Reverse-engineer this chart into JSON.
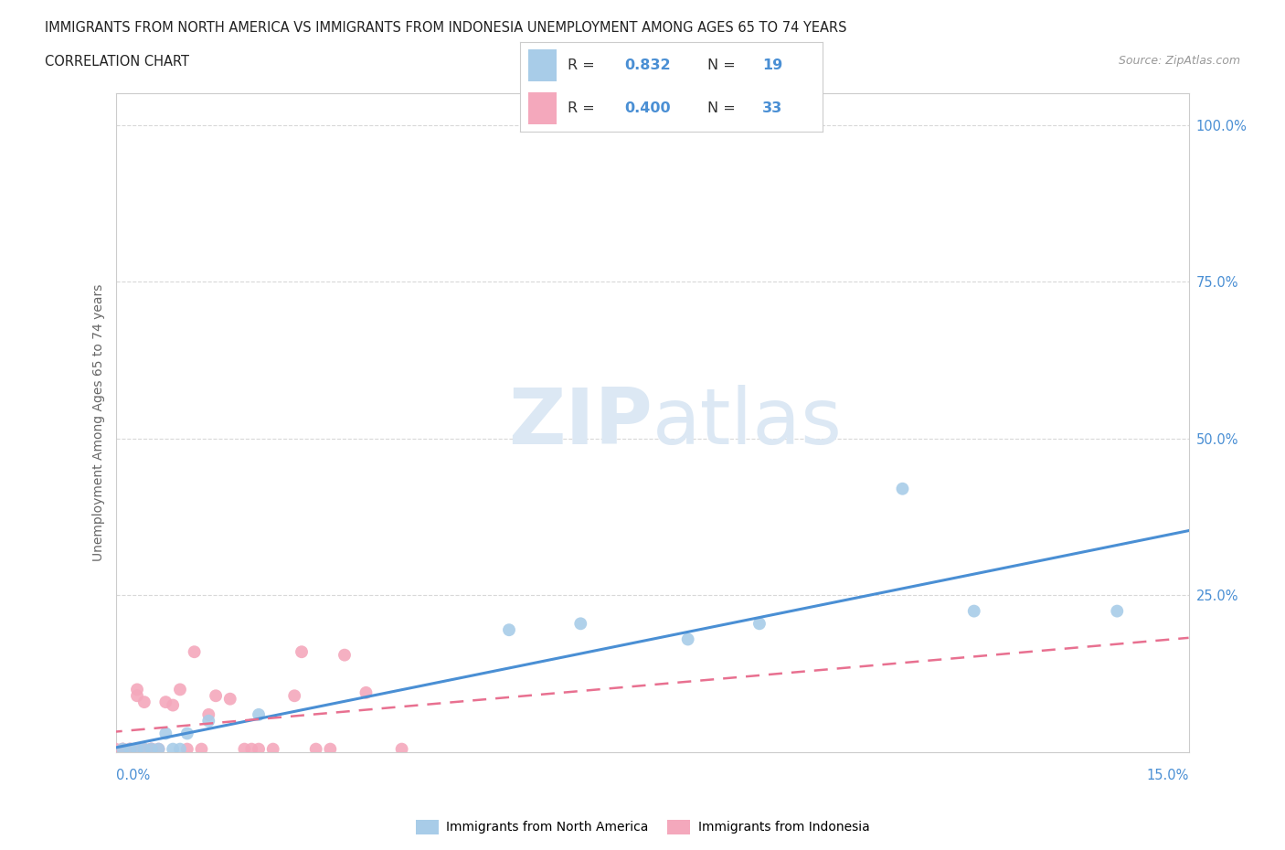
{
  "title_line1": "IMMIGRANTS FROM NORTH AMERICA VS IMMIGRANTS FROM INDONESIA UNEMPLOYMENT AMONG AGES 65 TO 74 YEARS",
  "title_line2": "CORRELATION CHART",
  "source_text": "Source: ZipAtlas.com",
  "ylabel_text": "Unemployment Among Ages 65 to 74 years",
  "blue_color": "#a8cce8",
  "pink_color": "#f4a8bc",
  "blue_line_color": "#4a8fd4",
  "pink_line_color": "#e87090",
  "tick_color": "#4a8fd4",
  "blue_R": "0.832",
  "blue_N": "19",
  "pink_R": "0.400",
  "pink_N": "33",
  "watermark_color": "#dce8f4",
  "blue_points_x": [
    0.001,
    0.002,
    0.003,
    0.004,
    0.005,
    0.006,
    0.007,
    0.008,
    0.009,
    0.01,
    0.013,
    0.02,
    0.055,
    0.065,
    0.08,
    0.09,
    0.11,
    0.12,
    0.14
  ],
  "blue_points_y": [
    0.005,
    0.005,
    0.005,
    0.005,
    0.005,
    0.005,
    0.03,
    0.005,
    0.005,
    0.03,
    0.05,
    0.06,
    0.195,
    0.205,
    0.18,
    0.205,
    0.42,
    0.225,
    0.225
  ],
  "pink_points_x": [
    0.0,
    0.001,
    0.001,
    0.002,
    0.002,
    0.003,
    0.003,
    0.003,
    0.004,
    0.004,
    0.005,
    0.005,
    0.006,
    0.007,
    0.008,
    0.009,
    0.01,
    0.011,
    0.012,
    0.013,
    0.014,
    0.016,
    0.018,
    0.019,
    0.02,
    0.022,
    0.025,
    0.026,
    0.028,
    0.03,
    0.032,
    0.035,
    0.04
  ],
  "pink_points_y": [
    0.005,
    0.005,
    0.005,
    0.005,
    0.005,
    0.005,
    0.09,
    0.1,
    0.005,
    0.08,
    0.005,
    0.005,
    0.005,
    0.08,
    0.075,
    0.1,
    0.005,
    0.16,
    0.005,
    0.06,
    0.09,
    0.085,
    0.005,
    0.005,
    0.005,
    0.005,
    0.09,
    0.16,
    0.005,
    0.005,
    0.155,
    0.095,
    0.005
  ],
  "xlim": [
    0.0,
    0.15
  ],
  "ylim": [
    0.0,
    1.05
  ],
  "grid_color": "#d8d8d8",
  "background_color": "#ffffff"
}
